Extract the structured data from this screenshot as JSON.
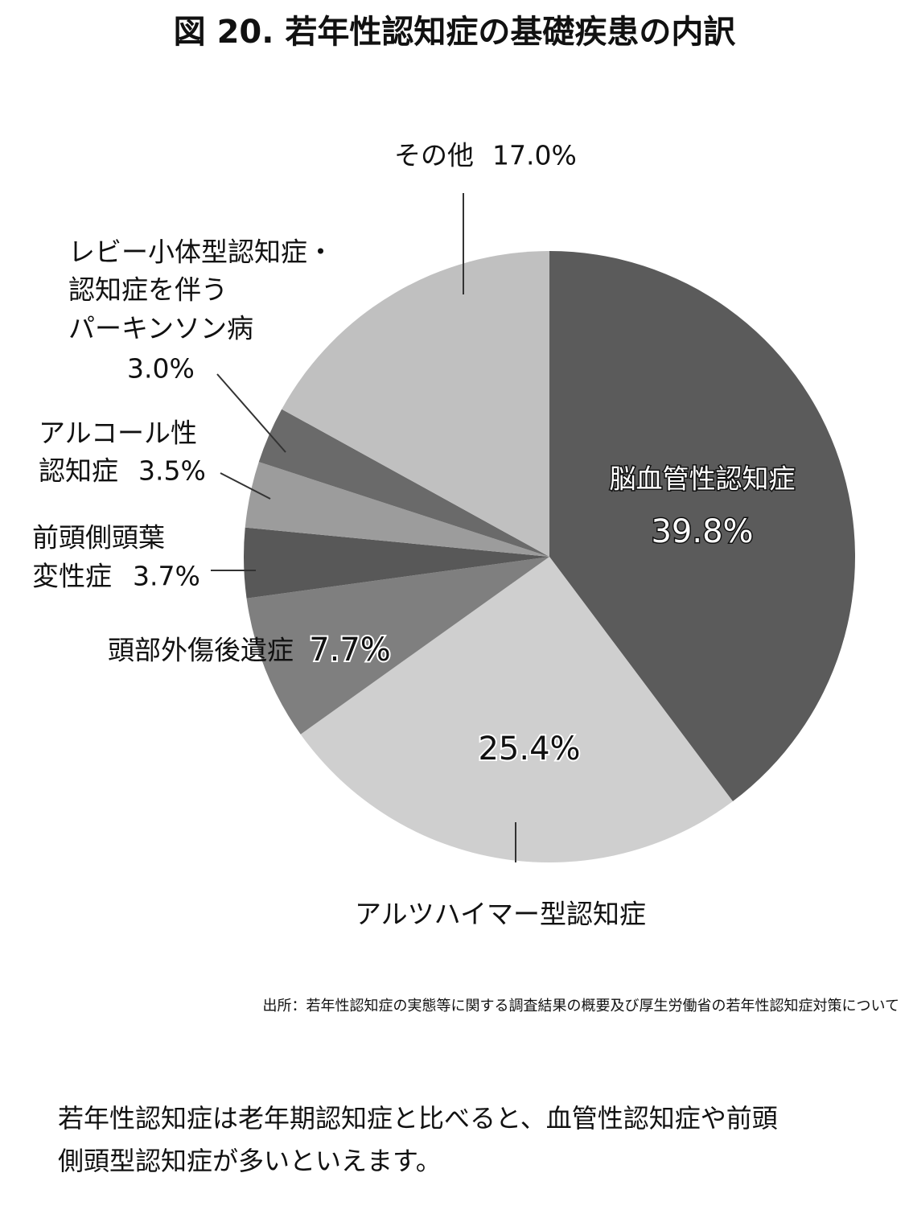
{
  "chart_data": {
    "type": "pie",
    "title": "図 20. 若年性認知症の基礎疾患の内訳",
    "categories": [
      [
        "脳血管性認知症"
      ],
      [
        "アルツハイマー型認知症"
      ],
      [
        "頭部外傷後遺症"
      ],
      [
        "前頭側頭葉",
        "変性症"
      ],
      [
        "アルコール性",
        "認知症"
      ],
      [
        "レビー小体型認知症・",
        "認知症を伴う",
        "パーキンソン病"
      ],
      [
        "その他"
      ]
    ],
    "values": [
      39.8,
      25.4,
      7.7,
      3.7,
      3.5,
      3.0,
      17.0
    ],
    "value_labels": [
      "39.8%",
      "25.4%",
      "7.7%",
      "3.7%",
      "3.5%",
      "3.0%",
      "17.0%"
    ],
    "colors": [
      "#5b5b5b",
      "#cfcfcf",
      "#7f7f7f",
      "#585858",
      "#9c9c9c",
      "#6a6a6a",
      "#c0c0c0"
    ],
    "source": "出所：若年性認知症の実態等に関する調査結果の概要及び厚生労働省の若年性認知症対策について"
  },
  "body_text": [
    "若年性認知症は老年期認知症と比べると、血管性認知症や前頭",
    "側頭型認知症が多いといえます。"
  ]
}
